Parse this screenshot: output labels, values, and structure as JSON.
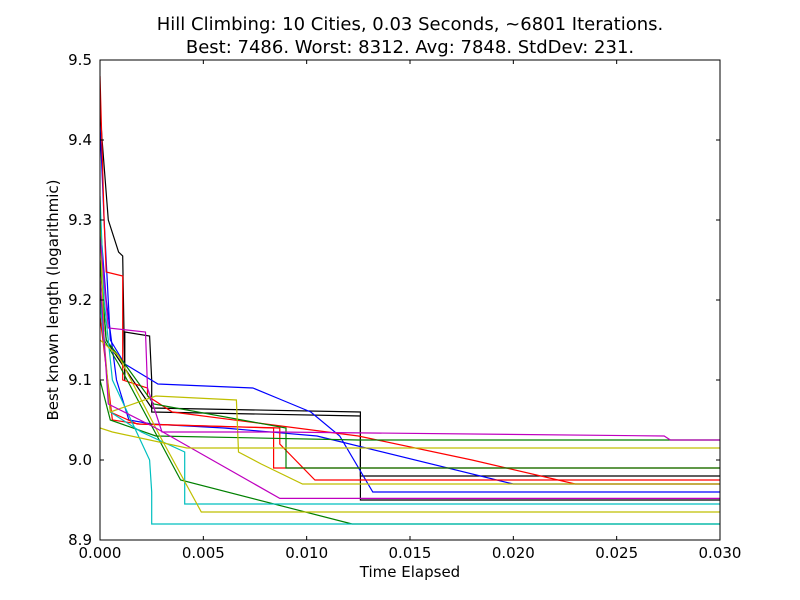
{
  "chart_data": {
    "type": "line",
    "title": "Hill Climbing: 10 Cities, 0.03 Seconds, ~6801 Iterations.",
    "subtitle": "Best: 7486. Worst: 8312. Avg: 7848. StdDev: 231.",
    "xlabel": "Time Elapsed",
    "ylabel": "Best known length (logarithmic)",
    "xlim": [
      0.0,
      0.03
    ],
    "ylim": [
      8.9,
      9.5
    ],
    "xticks": [
      "0.000",
      "0.005",
      "0.010",
      "0.015",
      "0.020",
      "0.025",
      "0.030"
    ],
    "yticks": [
      "8.9",
      "9.0",
      "9.1",
      "9.2",
      "9.3",
      "9.4",
      "9.5"
    ],
    "grid": false,
    "series": [
      {
        "color": "#000000",
        "x": [
          0,
          0.0001,
          0.0004,
          0.0009,
          0.0011,
          0.0012,
          0.0012,
          0.0024,
          0.0025,
          0.0025,
          0.0126,
          0.0126,
          0.03
        ],
        "y": [
          9.44,
          9.4,
          9.3,
          9.26,
          9.255,
          9.1,
          9.16,
          9.155,
          9.1,
          9.06,
          9.055,
          8.98,
          8.98
        ]
      },
      {
        "color": "#000000",
        "x": [
          0,
          0.0003,
          0.0008,
          0.0025,
          0.0126,
          0.0126,
          0.03
        ],
        "y": [
          9.25,
          9.15,
          9.13,
          9.065,
          9.06,
          8.95,
          8.95
        ]
      },
      {
        "color": "#0000ff",
        "x": [
          0,
          0.0002,
          0.0005,
          0.0012,
          0.0028,
          0.0074,
          0.0088,
          0.0102,
          0.0116,
          0.0132,
          0.03
        ],
        "y": [
          9.42,
          9.3,
          9.15,
          9.12,
          9.095,
          9.09,
          9.075,
          9.06,
          9.03,
          8.96,
          8.96
        ]
      },
      {
        "color": "#0000ff",
        "x": [
          0,
          0.0003,
          0.0008,
          0.0014,
          0.0025,
          0.006,
          0.0105,
          0.02,
          0.03
        ],
        "y": [
          9.3,
          9.2,
          9.1,
          9.05,
          9.045,
          9.04,
          9.03,
          8.97,
          8.97
        ]
      },
      {
        "color": "#ff0000",
        "x": [
          0,
          0.0002,
          0.0003,
          0.0011,
          0.0011,
          0.0023,
          0.0023,
          0.0035,
          0.0125,
          0.018,
          0.023,
          0.03
        ],
        "y": [
          9.48,
          9.3,
          9.235,
          9.23,
          9.1,
          9.09,
          9.08,
          9.06,
          9.03,
          9.0,
          8.97,
          8.97
        ]
      },
      {
        "color": "#ff0000",
        "x": [
          0,
          0.0005,
          0.0018,
          0.0084,
          0.0084,
          0.03
        ],
        "y": [
          9.2,
          9.06,
          9.045,
          9.04,
          8.99,
          8.99
        ]
      },
      {
        "color": "#ff0000",
        "x": [
          0,
          0.0006,
          0.0019,
          0.0087,
          0.0087,
          0.0104,
          0.03
        ],
        "y": [
          9.18,
          9.05,
          9.045,
          9.04,
          9.02,
          8.975,
          8.975
        ]
      },
      {
        "color": "#008000",
        "x": [
          0,
          0.0003,
          0.0012,
          0.0026,
          0.009,
          0.009,
          0.0105,
          0.03
        ],
        "y": [
          9.25,
          9.15,
          9.12,
          9.07,
          9.04,
          8.99,
          8.99,
          8.99
        ]
      },
      {
        "color": "#008000",
        "x": [
          0,
          0.0002,
          0.0009,
          0.0039,
          0.0122,
          0.03
        ],
        "y": [
          9.22,
          9.15,
          9.12,
          8.975,
          8.92,
          8.92
        ]
      },
      {
        "color": "#008000",
        "x": [
          0,
          0.0005,
          0.0027,
          0.0125,
          0.03
        ],
        "y": [
          9.1,
          9.05,
          9.03,
          9.025,
          9.025
        ]
      },
      {
        "color": "#00bfbf",
        "x": [
          0,
          0.0002,
          0.0006,
          0.0024,
          0.0025,
          0.0025,
          0.03
        ],
        "y": [
          9.33,
          9.2,
          9.1,
          9.0,
          8.96,
          8.92,
          8.92
        ]
      },
      {
        "color": "#00bfbf",
        "x": [
          0,
          0.0005,
          0.002,
          0.0041,
          0.0041,
          0.03
        ],
        "y": [
          9.2,
          9.06,
          9.035,
          9.01,
          8.945,
          8.945
        ]
      },
      {
        "color": "#bfbf00",
        "x": [
          0,
          0.0002,
          0.0005,
          0.0027,
          0.0066,
          0.0067,
          0.0078,
          0.0098,
          0.03
        ],
        "y": [
          9.3,
          9.15,
          9.06,
          9.08,
          9.075,
          9.01,
          8.995,
          8.97,
          8.97
        ]
      },
      {
        "color": "#bfbf00",
        "x": [
          0,
          0.0009,
          0.0029,
          0.0049,
          0.03
        ],
        "y": [
          9.15,
          9.13,
          9.03,
          8.935,
          8.935
        ]
      },
      {
        "color": "#bf00bf",
        "x": [
          0,
          0.0004,
          0.0022,
          0.0023,
          0.003,
          0.0085,
          0.0273,
          0.0276,
          0.03
        ],
        "y": [
          9.28,
          9.165,
          9.16,
          9.09,
          9.035,
          9.035,
          9.03,
          9.025,
          9.025
        ]
      },
      {
        "color": "#bf00bf",
        "x": [
          0,
          0.0004,
          0.0027,
          0.0087,
          0.03
        ],
        "y": [
          9.23,
          9.07,
          9.04,
          8.952,
          8.952
        ]
      },
      {
        "color": "#bfbf00",
        "x": [
          0,
          0.0006,
          0.0042,
          0.03
        ],
        "y": [
          9.04,
          9.035,
          9.015,
          9.015
        ]
      }
    ]
  }
}
